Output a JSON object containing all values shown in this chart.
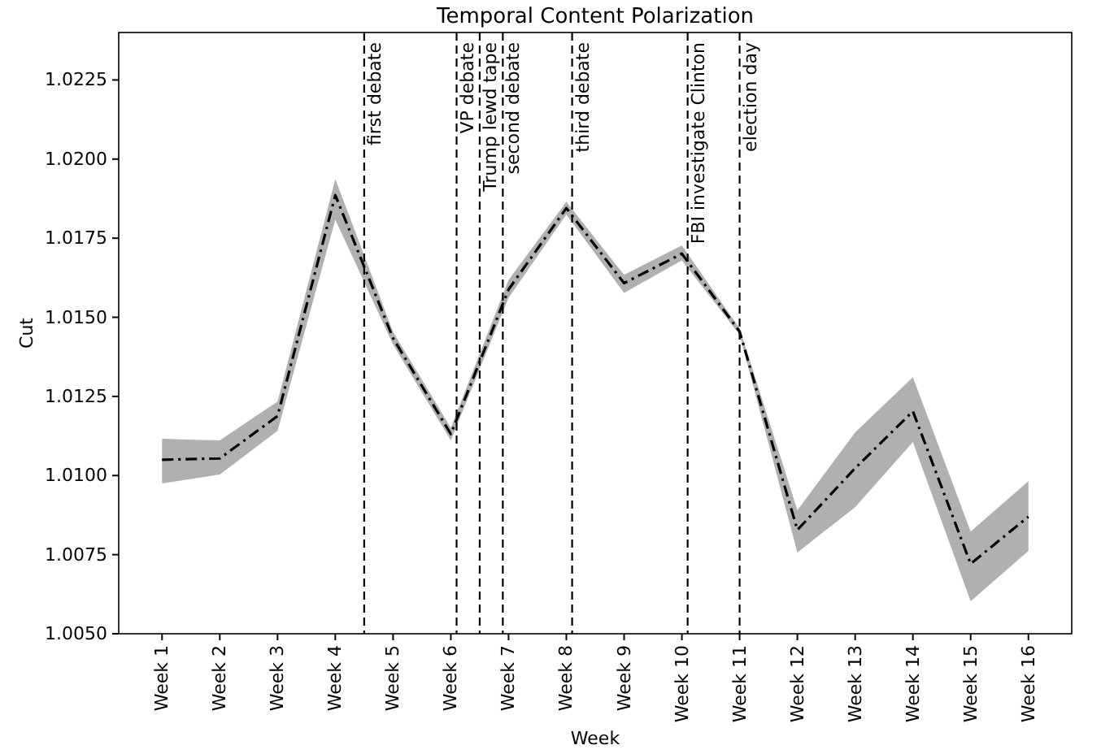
{
  "chart_data": {
    "type": "line",
    "title": "Temporal Content Polarization",
    "xlabel": "Week",
    "ylabel": "Cut",
    "categories": [
      "Week 1",
      "Week 2",
      "Week 3",
      "Week 4",
      "Week 5",
      "Week 6",
      "Week 7",
      "Week 8",
      "Week 9",
      "Week 10",
      "Week 11",
      "Week 12",
      "Week 13",
      "Week 14",
      "Week 15",
      "Week 16"
    ],
    "series": [
      {
        "color": "#000000",
        "line_style": "dashdot",
        "values": [
          1.0105,
          1.01054,
          1.01188,
          1.01886,
          1.01434,
          1.01131,
          1.01588,
          1.01845,
          1.01608,
          1.01701,
          1.01455,
          1.00828,
          1.01023,
          1.01203,
          1.00721,
          1.0087
        ],
        "lower": [
          1.00975,
          1.01003,
          1.01141,
          1.01809,
          1.01414,
          1.01111,
          1.01562,
          1.01825,
          1.01577,
          1.0168,
          1.01445,
          1.00757,
          1.009,
          1.01106,
          1.00603,
          1.00762
        ],
        "upper": [
          1.01116,
          1.01111,
          1.01234,
          1.01937,
          1.01454,
          1.01151,
          1.01618,
          1.01865,
          1.01634,
          1.01727,
          1.01465,
          1.0089,
          1.01136,
          1.01311,
          1.00823,
          1.00982
        ]
      }
    ],
    "ylim": [
      1.005,
      1.024
    ],
    "yticks": [
      {
        "value": 1.005,
        "label": "1.0050"
      },
      {
        "value": 1.0075,
        "label": "1.0075"
      },
      {
        "value": 1.01,
        "label": "1.0100"
      },
      {
        "value": 1.0125,
        "label": "1.0125"
      },
      {
        "value": 1.015,
        "label": "1.0150"
      },
      {
        "value": 1.0175,
        "label": "1.0175"
      },
      {
        "value": 1.02,
        "label": "1.0200"
      },
      {
        "value": 1.0225,
        "label": "1.0225"
      }
    ],
    "annotations": [
      "first debate",
      "VP debate",
      "Trump lewd tape",
      "second debate",
      "third debate",
      "FBI investigate Clinton",
      "election day"
    ]
  }
}
